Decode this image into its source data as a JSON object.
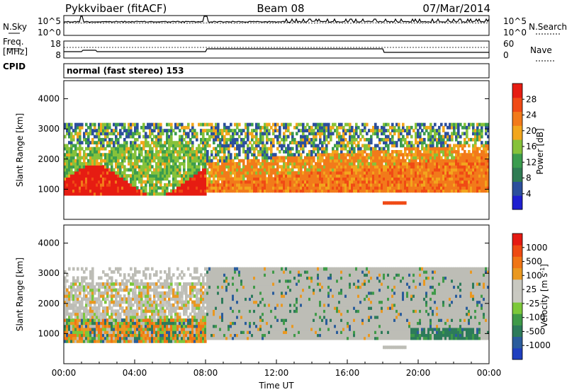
{
  "header": {
    "station": "Pykkvibaer (fitACF)",
    "beam": "Beam 08",
    "date": "07/Mar/2014"
  },
  "panels": {
    "nsky": {
      "left_label": "N.Sky",
      "left_ticks": [
        "10^5",
        "10^0"
      ],
      "right_ticks": [
        "10^5",
        "10^0"
      ],
      "right_label": "N.Search"
    },
    "freq": {
      "left_label_line1": "Freq.",
      "left_label_line2": "[MHz]",
      "left_ticks": [
        "18",
        "8"
      ],
      "right_ticks": [
        "60",
        "0"
      ],
      "right_label": "Nave"
    },
    "cpid": {
      "left_label": "CPID",
      "text": "normal (fast stereo) 153"
    }
  },
  "colors": {
    "power_scale": [
      "#1f1fd0",
      "#2c4f9c",
      "#2f7c53",
      "#3b9c4e",
      "#86c23a",
      "#f2a61d",
      "#f27a1a",
      "#f04a15",
      "#e61c12"
    ],
    "velocity_scale": [
      "#1f3fbf",
      "#2a5c9c",
      "#2d7b5a",
      "#3f9a48",
      "#7cc83a",
      "#c9c9c2",
      "#c8c8c0",
      "#ea9820",
      "#f07515",
      "#ee4a12",
      "#e51a12"
    ],
    "ground_scatter": "#bdbdb6"
  },
  "chart_data": [
    {
      "type": "heatmap",
      "name": "power",
      "ylabel": "Slant Range [km]",
      "ylim": [
        0,
        4600
      ],
      "yticks": [
        "1000",
        "2000",
        "3000",
        "4000"
      ],
      "xlim": [
        "00:00",
        "24:00"
      ],
      "colorbar": {
        "label": "Power [dB]",
        "ticks": [
          "28",
          "24",
          "20",
          "16",
          "12",
          "8",
          "4"
        ],
        "range": [
          0,
          32
        ]
      },
      "bands": [
        {
          "t_start": 0,
          "t_end": 8,
          "range_low": 800,
          "range_high": 1300,
          "level": "high"
        },
        {
          "t_start": 8,
          "t_end": 24,
          "range_low": 900,
          "range_high": 2400,
          "level": "medium-high"
        },
        {
          "t_start": 0,
          "t_end": 24,
          "range_low": 2200,
          "range_high": 3200,
          "level": "low"
        }
      ]
    },
    {
      "type": "heatmap",
      "name": "velocity",
      "ylabel": "Slant Range [km]",
      "ylim": [
        0,
        4600
      ],
      "yticks": [
        "1000",
        "2000",
        "3000",
        "4000"
      ],
      "xticks": [
        "00:00",
        "04:00",
        "08:00",
        "12:00",
        "16:00",
        "20:00",
        "00:00"
      ],
      "xlabel": "Time UT",
      "colorbar": {
        "label": "Velocity [m s-1]",
        "ticks": [
          "1000",
          "500",
          "100",
          "25",
          "-25",
          "-100",
          "-500",
          "-1000"
        ]
      }
    }
  ]
}
